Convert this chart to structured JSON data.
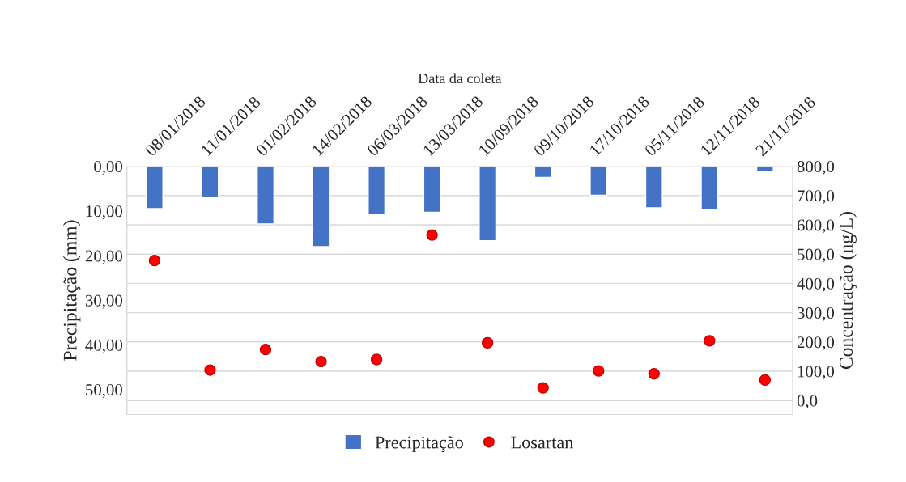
{
  "chart_data": {
    "type": "bar",
    "xlabel": "Data da coleta",
    "ylabel": "Precipitação (mm)",
    "y2label": "Concentração (ng/L)",
    "categories": [
      "08/01/2018",
      "11/01/2018",
      "01/02/2018",
      "14/02/2018",
      "06/03/2018",
      "13/03/2018",
      "10/09/2018",
      "09/10/2018",
      "17/10/2018",
      "05/11/2018",
      "12/11/2018",
      "21/11/2018"
    ],
    "series": [
      {
        "name": "Precipitação",
        "color": "#4472c4",
        "values": [
          9.5,
          7.0,
          12.9,
          18.0,
          10.8,
          10.3,
          16.7,
          2.5,
          6.5,
          9.3,
          9.8,
          1.3
        ]
      },
      {
        "name": "Losartan",
        "type": "scatter",
        "axis": "y2",
        "color": "#ff0000",
        "values": [
          478,
          104,
          174,
          133,
          140,
          565,
          197,
          43,
          101,
          91,
          204,
          70
        ]
      }
    ],
    "ylim": [
      55.6,
      0
    ],
    "yticks": [
      {
        "value": 0,
        "label": "0,00"
      },
      {
        "value": 10,
        "label": "10,00"
      },
      {
        "value": 20,
        "label": "20,00"
      },
      {
        "value": 30,
        "label": "30,00"
      },
      {
        "value": 40,
        "label": "40,00"
      },
      {
        "value": 50,
        "label": "50,00"
      }
    ],
    "y2lim": [
      -48,
      800
    ],
    "y2ticks": [
      {
        "value": 0,
        "label": "0,0"
      },
      {
        "value": 100,
        "label": "100,0"
      },
      {
        "value": 200,
        "label": "200,0"
      },
      {
        "value": 300,
        "label": "300,0"
      },
      {
        "value": 400,
        "label": "400,0"
      },
      {
        "value": 500,
        "label": "500,0"
      },
      {
        "value": 600,
        "label": "600,0"
      },
      {
        "value": 700,
        "label": "700,0"
      },
      {
        "value": 800,
        "label": "800,0"
      }
    ],
    "grid": "y",
    "legend": "bottom",
    "marker": "circle"
  }
}
